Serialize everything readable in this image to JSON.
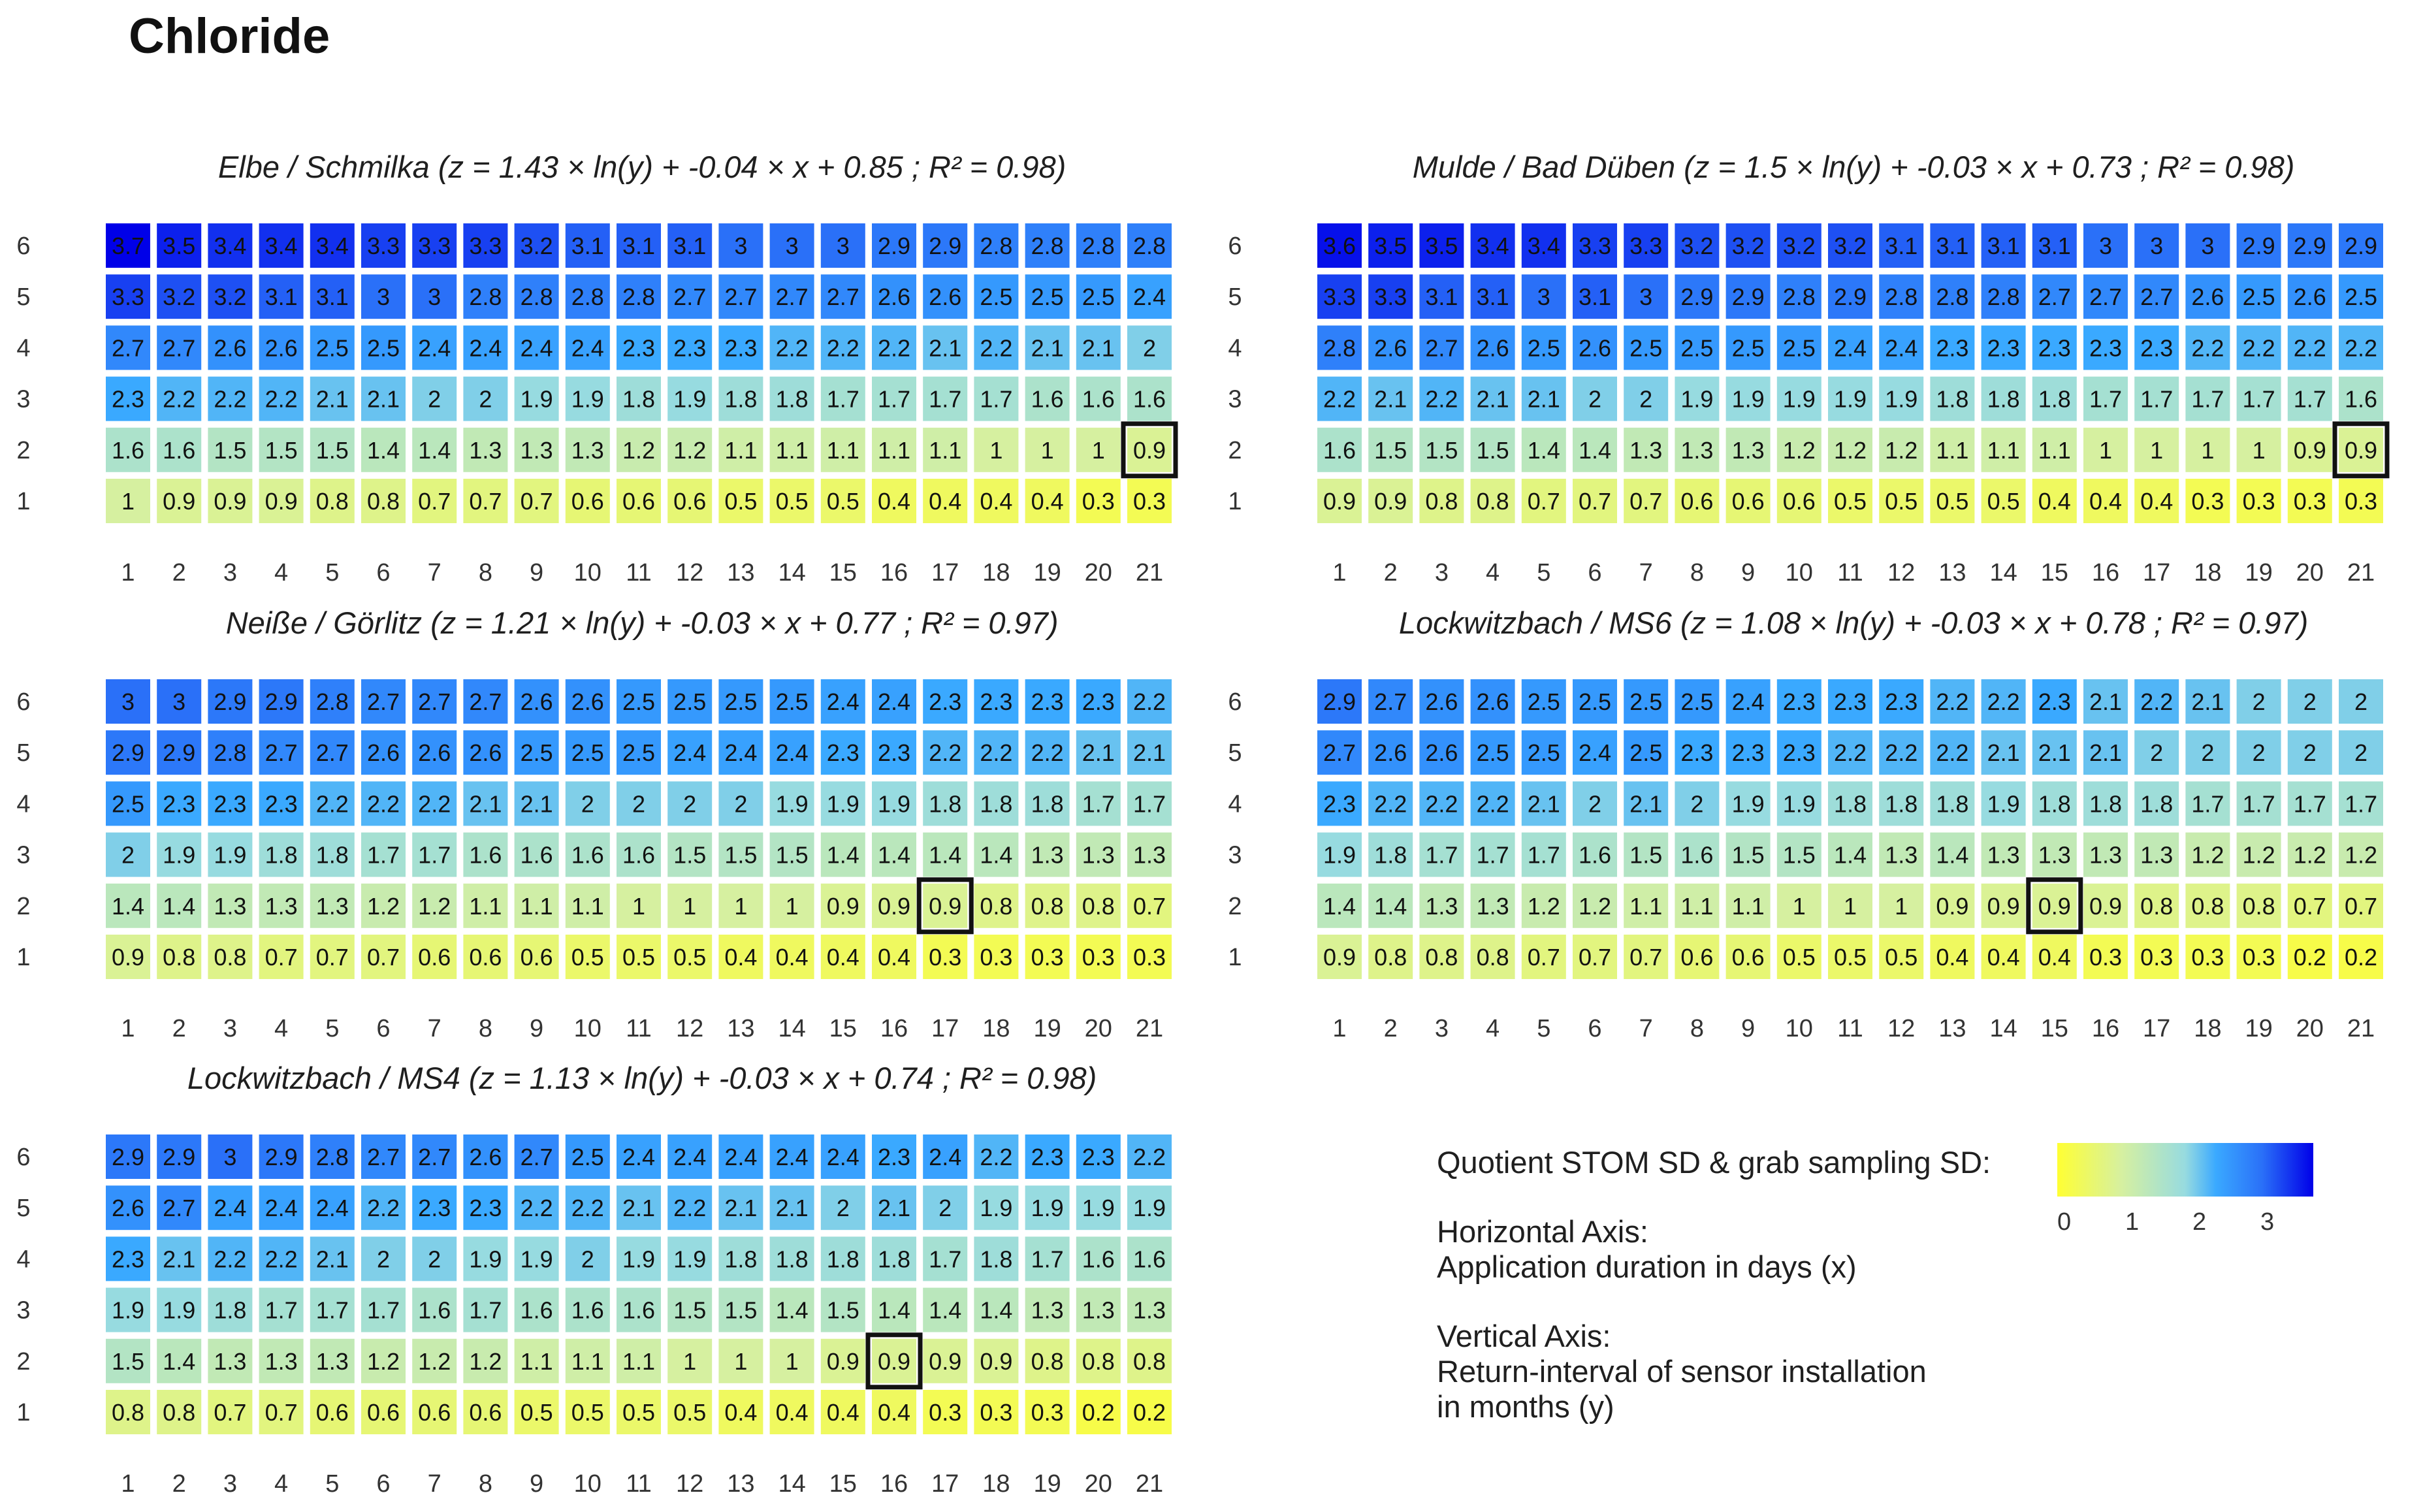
{
  "page_title": "Chloride",
  "legend": {
    "colorbar_title": "Quotient STOM SD & grab sampling SD:",
    "colorbar_ticks": [
      "0",
      "1",
      "2",
      "3"
    ],
    "horizontal_axis_heading": "Horizontal Axis:",
    "horizontal_axis_desc": "Application duration in days (x)",
    "vertical_axis_heading": "Vertical Axis:",
    "vertical_axis_desc_1": "Return-interval of sensor installation",
    "vertical_axis_desc_2": "in months (y)"
  },
  "chart_data": [
    {
      "type": "heatmap",
      "title": "Elbe / Schmilka  (z = 1.43 × ln(y) + -0.04 × x + 0.85 ; R² = 0.98)",
      "x": [
        "1",
        "2",
        "3",
        "4",
        "5",
        "6",
        "7",
        "8",
        "9",
        "10",
        "11",
        "12",
        "13",
        "14",
        "15",
        "16",
        "17",
        "18",
        "19",
        "20",
        "21"
      ],
      "y": [
        "6",
        "5",
        "4",
        "3",
        "2",
        "1"
      ],
      "values": [
        [
          3.7,
          3.5,
          3.4,
          3.4,
          3.4,
          3.3,
          3.3,
          3.3,
          3.2,
          3.1,
          3.1,
          3.1,
          3,
          3,
          3,
          2.9,
          2.9,
          2.8,
          2.8,
          2.8,
          2.8
        ],
        [
          3.3,
          3.2,
          3.2,
          3.1,
          3.1,
          3,
          3,
          2.8,
          2.8,
          2.8,
          2.8,
          2.7,
          2.7,
          2.7,
          2.7,
          2.6,
          2.6,
          2.5,
          2.5,
          2.5,
          2.4
        ],
        [
          2.7,
          2.7,
          2.6,
          2.6,
          2.5,
          2.5,
          2.4,
          2.4,
          2.4,
          2.4,
          2.3,
          2.3,
          2.3,
          2.2,
          2.2,
          2.2,
          2.1,
          2.2,
          2.1,
          2.1,
          2
        ],
        [
          2.3,
          2.2,
          2.2,
          2.2,
          2.1,
          2.1,
          2,
          2,
          1.9,
          1.9,
          1.8,
          1.9,
          1.8,
          1.8,
          1.7,
          1.7,
          1.7,
          1.7,
          1.6,
          1.6,
          1.6
        ],
        [
          1.6,
          1.6,
          1.5,
          1.5,
          1.5,
          1.4,
          1.4,
          1.3,
          1.3,
          1.3,
          1.2,
          1.2,
          1.1,
          1.1,
          1.1,
          1.1,
          1.1,
          1,
          1,
          1,
          0.9
        ],
        [
          1,
          0.9,
          0.9,
          0.9,
          0.8,
          0.8,
          0.7,
          0.7,
          0.7,
          0.6,
          0.6,
          0.6,
          0.5,
          0.5,
          0.5,
          0.4,
          0.4,
          0.4,
          0.4,
          0.3,
          0.3
        ]
      ],
      "highlight": {
        "x": "21",
        "y": "2",
        "value": 0.9
      }
    },
    {
      "type": "heatmap",
      "title": "Mulde / Bad Düben  (z = 1.5 × ln(y) + -0.03 × x + 0.73 ; R² = 0.98)",
      "x": [
        "1",
        "2",
        "3",
        "4",
        "5",
        "6",
        "7",
        "8",
        "9",
        "10",
        "11",
        "12",
        "13",
        "14",
        "15",
        "16",
        "17",
        "18",
        "19",
        "20",
        "21"
      ],
      "y": [
        "6",
        "5",
        "4",
        "3",
        "2",
        "1"
      ],
      "values": [
        [
          3.6,
          3.5,
          3.5,
          3.4,
          3.4,
          3.3,
          3.3,
          3.2,
          3.2,
          3.2,
          3.2,
          3.1,
          3.1,
          3.1,
          3.1,
          3,
          3,
          3,
          2.9,
          2.9,
          2.9
        ],
        [
          3.3,
          3.3,
          3.1,
          3.1,
          3,
          3.1,
          3,
          2.9,
          2.9,
          2.8,
          2.9,
          2.8,
          2.8,
          2.8,
          2.7,
          2.7,
          2.7,
          2.6,
          2.5,
          2.6,
          2.5
        ],
        [
          2.8,
          2.6,
          2.7,
          2.6,
          2.5,
          2.6,
          2.5,
          2.5,
          2.5,
          2.5,
          2.4,
          2.4,
          2.3,
          2.3,
          2.3,
          2.3,
          2.3,
          2.2,
          2.2,
          2.2,
          2.2
        ],
        [
          2.2,
          2.1,
          2.2,
          2.1,
          2.1,
          2,
          2,
          1.9,
          1.9,
          1.9,
          1.9,
          1.9,
          1.8,
          1.8,
          1.8,
          1.7,
          1.7,
          1.7,
          1.7,
          1.7,
          1.6
        ],
        [
          1.6,
          1.5,
          1.5,
          1.5,
          1.4,
          1.4,
          1.3,
          1.3,
          1.3,
          1.2,
          1.2,
          1.2,
          1.1,
          1.1,
          1.1,
          1,
          1,
          1,
          1,
          0.9,
          0.9
        ],
        [
          0.9,
          0.9,
          0.8,
          0.8,
          0.7,
          0.7,
          0.7,
          0.6,
          0.6,
          0.6,
          0.5,
          0.5,
          0.5,
          0.5,
          0.4,
          0.4,
          0.4,
          0.3,
          0.3,
          0.3,
          0.3
        ]
      ],
      "highlight": {
        "x": "21",
        "y": "2",
        "value": 0.9
      }
    },
    {
      "type": "heatmap",
      "title": "Neiße / Görlitz  (z = 1.21 × ln(y) + -0.03 × x + 0.77 ; R² = 0.97)",
      "x": [
        "1",
        "2",
        "3",
        "4",
        "5",
        "6",
        "7",
        "8",
        "9",
        "10",
        "11",
        "12",
        "13",
        "14",
        "15",
        "16",
        "17",
        "18",
        "19",
        "20",
        "21"
      ],
      "y": [
        "6",
        "5",
        "4",
        "3",
        "2",
        "1"
      ],
      "values": [
        [
          3,
          3,
          2.9,
          2.9,
          2.8,
          2.7,
          2.7,
          2.7,
          2.6,
          2.6,
          2.5,
          2.5,
          2.5,
          2.5,
          2.4,
          2.4,
          2.3,
          2.3,
          2.3,
          2.3,
          2.2
        ],
        [
          2.9,
          2.9,
          2.8,
          2.7,
          2.7,
          2.6,
          2.6,
          2.6,
          2.5,
          2.5,
          2.5,
          2.4,
          2.4,
          2.4,
          2.3,
          2.3,
          2.2,
          2.2,
          2.2,
          2.1,
          2.1
        ],
        [
          2.5,
          2.3,
          2.3,
          2.3,
          2.2,
          2.2,
          2.2,
          2.1,
          2.1,
          2,
          2,
          2,
          2,
          1.9,
          1.9,
          1.9,
          1.8,
          1.8,
          1.8,
          1.7,
          1.7
        ],
        [
          2,
          1.9,
          1.9,
          1.8,
          1.8,
          1.7,
          1.7,
          1.6,
          1.6,
          1.6,
          1.6,
          1.5,
          1.5,
          1.5,
          1.4,
          1.4,
          1.4,
          1.4,
          1.3,
          1.3,
          1.3
        ],
        [
          1.4,
          1.4,
          1.3,
          1.3,
          1.3,
          1.2,
          1.2,
          1.1,
          1.1,
          1.1,
          1,
          1,
          1,
          1,
          0.9,
          0.9,
          0.9,
          0.8,
          0.8,
          0.8,
          0.7
        ],
        [
          0.9,
          0.8,
          0.8,
          0.7,
          0.7,
          0.7,
          0.6,
          0.6,
          0.6,
          0.5,
          0.5,
          0.5,
          0.4,
          0.4,
          0.4,
          0.4,
          0.3,
          0.3,
          0.3,
          0.3,
          0.3
        ]
      ],
      "highlight": {
        "x": "17",
        "y": "2",
        "value": 0.9
      }
    },
    {
      "type": "heatmap",
      "title": "Lockwitzbach / MS6  (z = 1.08 × ln(y) + -0.03 × x + 0.78 ; R² = 0.97)",
      "x": [
        "1",
        "2",
        "3",
        "4",
        "5",
        "6",
        "7",
        "8",
        "9",
        "10",
        "11",
        "12",
        "13",
        "14",
        "15",
        "16",
        "17",
        "18",
        "19",
        "20",
        "21"
      ],
      "y": [
        "6",
        "5",
        "4",
        "3",
        "2",
        "1"
      ],
      "values": [
        [
          2.9,
          2.7,
          2.6,
          2.6,
          2.5,
          2.5,
          2.5,
          2.5,
          2.4,
          2.3,
          2.3,
          2.3,
          2.2,
          2.2,
          2.3,
          2.1,
          2.2,
          2.1,
          2,
          2,
          2
        ],
        [
          2.7,
          2.6,
          2.6,
          2.5,
          2.5,
          2.4,
          2.5,
          2.3,
          2.3,
          2.3,
          2.2,
          2.2,
          2.2,
          2.1,
          2.1,
          2.1,
          2,
          2,
          2,
          2,
          2
        ],
        [
          2.3,
          2.2,
          2.2,
          2.2,
          2.1,
          2,
          2.1,
          2,
          1.9,
          1.9,
          1.8,
          1.8,
          1.8,
          1.9,
          1.8,
          1.8,
          1.8,
          1.7,
          1.7,
          1.7,
          1.7
        ],
        [
          1.9,
          1.8,
          1.7,
          1.7,
          1.7,
          1.6,
          1.5,
          1.6,
          1.5,
          1.5,
          1.4,
          1.3,
          1.4,
          1.3,
          1.3,
          1.3,
          1.3,
          1.2,
          1.2,
          1.2,
          1.2
        ],
        [
          1.4,
          1.4,
          1.3,
          1.3,
          1.2,
          1.2,
          1.1,
          1.1,
          1.1,
          1,
          1,
          1,
          0.9,
          0.9,
          0.9,
          0.9,
          0.8,
          0.8,
          0.8,
          0.7,
          0.7
        ],
        [
          0.9,
          0.8,
          0.8,
          0.8,
          0.7,
          0.7,
          0.7,
          0.6,
          0.6,
          0.5,
          0.5,
          0.5,
          0.4,
          0.4,
          0.4,
          0.3,
          0.3,
          0.3,
          0.3,
          0.2,
          0.2
        ]
      ],
      "highlight": {
        "x": "15",
        "y": "2",
        "value": 0.9
      }
    },
    {
      "type": "heatmap",
      "title": "Lockwitzbach / MS4  (z = 1.13 × ln(y) + -0.03 × x + 0.74 ; R² = 0.98)",
      "x": [
        "1",
        "2",
        "3",
        "4",
        "5",
        "6",
        "7",
        "8",
        "9",
        "10",
        "11",
        "12",
        "13",
        "14",
        "15",
        "16",
        "17",
        "18",
        "19",
        "20",
        "21"
      ],
      "y": [
        "6",
        "5",
        "4",
        "3",
        "2",
        "1"
      ],
      "values": [
        [
          2.9,
          2.9,
          3,
          2.9,
          2.8,
          2.7,
          2.7,
          2.6,
          2.7,
          2.5,
          2.4,
          2.4,
          2.4,
          2.4,
          2.4,
          2.3,
          2.4,
          2.2,
          2.3,
          2.3,
          2.2
        ],
        [
          2.6,
          2.7,
          2.4,
          2.4,
          2.4,
          2.2,
          2.3,
          2.3,
          2.2,
          2.2,
          2.1,
          2.2,
          2.1,
          2.1,
          2,
          2.1,
          2,
          1.9,
          1.9,
          1.9,
          1.9
        ],
        [
          2.3,
          2.1,
          2.2,
          2.2,
          2.1,
          2,
          2,
          1.9,
          1.9,
          2,
          1.9,
          1.9,
          1.8,
          1.8,
          1.8,
          1.8,
          1.7,
          1.8,
          1.7,
          1.6,
          1.6
        ],
        [
          1.9,
          1.9,
          1.8,
          1.7,
          1.7,
          1.7,
          1.6,
          1.7,
          1.6,
          1.6,
          1.6,
          1.5,
          1.5,
          1.4,
          1.5,
          1.4,
          1.4,
          1.4,
          1.3,
          1.3,
          1.3
        ],
        [
          1.5,
          1.4,
          1.3,
          1.3,
          1.3,
          1.2,
          1.2,
          1.2,
          1.1,
          1.1,
          1.1,
          1,
          1,
          1,
          0.9,
          0.9,
          0.9,
          0.9,
          0.8,
          0.8,
          0.8
        ],
        [
          0.8,
          0.8,
          0.7,
          0.7,
          0.6,
          0.6,
          0.6,
          0.6,
          0.5,
          0.5,
          0.5,
          0.5,
          0.4,
          0.4,
          0.4,
          0.4,
          0.3,
          0.3,
          0.3,
          0.2,
          0.2
        ]
      ],
      "highlight": {
        "x": "16",
        "y": "2",
        "value": 0.9
      }
    }
  ],
  "colorscale": {
    "stops": [
      {
        "value": 0.0,
        "color": "#ffff33"
      },
      {
        "value": 1.0,
        "color": "#d6f0a0"
      },
      {
        "value": 1.9,
        "color": "#97dbe0"
      },
      {
        "value": 2.3,
        "color": "#3aa9ff"
      },
      {
        "value": 3.0,
        "color": "#2a70f8"
      },
      {
        "value": 3.7,
        "color": "#0000e8"
      }
    ]
  }
}
